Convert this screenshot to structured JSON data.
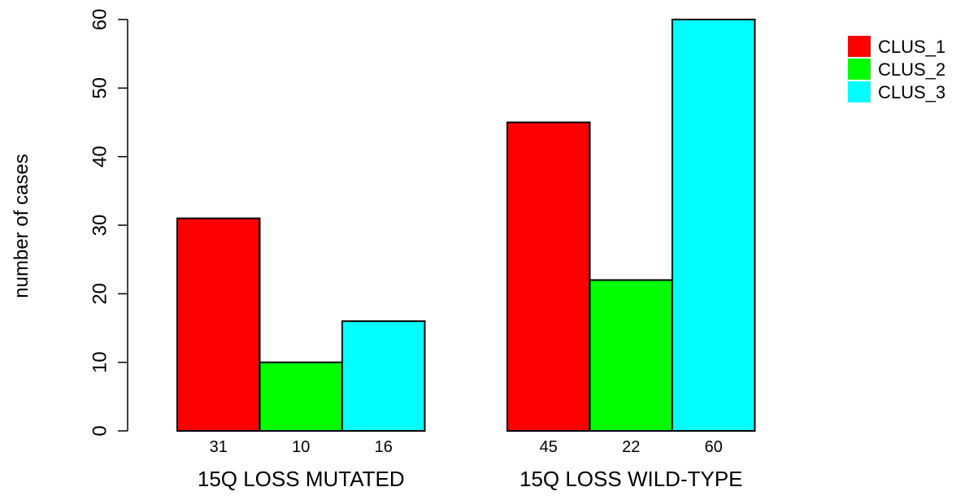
{
  "chart_data": {
    "type": "bar",
    "ylabel": "number of cases",
    "ylim": [
      0,
      60
    ],
    "yticks": [
      0,
      10,
      20,
      30,
      40,
      50,
      60
    ],
    "groups": [
      "15Q LOSS MUTATED",
      "15Q LOSS WILD-TYPE"
    ],
    "series": [
      {
        "name": "CLUS_1",
        "color": "#ff0000",
        "values": [
          31,
          45
        ]
      },
      {
        "name": "CLUS_2",
        "color": "#00ff00",
        "values": [
          10,
          22
        ]
      },
      {
        "name": "CLUS_3",
        "color": "#00ffff",
        "values": [
          16,
          60
        ]
      }
    ],
    "legend_position": "top-right"
  }
}
